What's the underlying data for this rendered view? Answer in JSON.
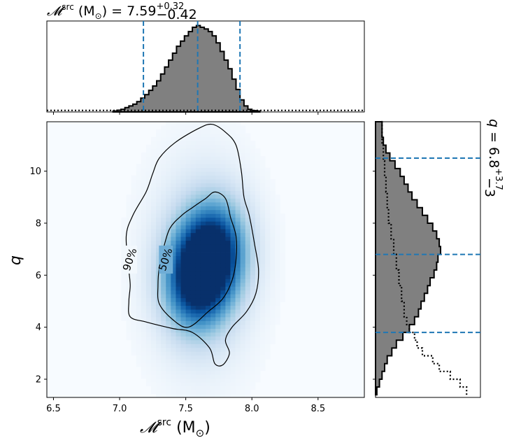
{
  "chart_data": [
    {
      "panel": "top-marginal",
      "type": "histogram",
      "title": {
        "prefix": "𝓜",
        "sup": "src",
        "unit": " (M",
        "sub_unit": "⊙",
        "close": ") = 7.59",
        "plus": "+0.32",
        "minus": "−0.42"
      },
      "x": {
        "lim": [
          6.45,
          8.85
        ]
      },
      "bin_edges": [
        6.95,
        6.98,
        7.01,
        7.04,
        7.07,
        7.1,
        7.13,
        7.16,
        7.19,
        7.22,
        7.25,
        7.28,
        7.31,
        7.34,
        7.37,
        7.4,
        7.43,
        7.46,
        7.49,
        7.52,
        7.55,
        7.58,
        7.61,
        7.64,
        7.67,
        7.7,
        7.73,
        7.76,
        7.79,
        7.82,
        7.85,
        7.88,
        7.91,
        7.94,
        7.97,
        8.0,
        8.03,
        8.06
      ],
      "counts": [
        0.01,
        0.02,
        0.03,
        0.05,
        0.07,
        0.09,
        0.12,
        0.16,
        0.2,
        0.25,
        0.3,
        0.36,
        0.44,
        0.52,
        0.6,
        0.68,
        0.76,
        0.82,
        0.88,
        0.93,
        0.98,
        1.0,
        0.98,
        0.96,
        0.93,
        0.88,
        0.8,
        0.7,
        0.6,
        0.5,
        0.38,
        0.26,
        0.14,
        0.07,
        0.03,
        0.015,
        0.01
      ],
      "prior": {
        "style": "dotted",
        "level": 0.01
      },
      "quantile_lines": [
        7.18,
        7.59,
        7.91
      ],
      "quantile_color": "#1f77b4"
    },
    {
      "panel": "joint",
      "type": "heatmap",
      "xlabel": {
        "prefix": "𝓜",
        "sup": "src",
        "rest": " (M",
        "sub": "⊙",
        "close": ")"
      },
      "ylabel": "q",
      "xlim": [
        6.45,
        8.85
      ],
      "ylim": [
        1.3,
        11.9
      ],
      "xticks": [
        "6.5",
        "7.0",
        "7.5",
        "8.0",
        "8.5"
      ],
      "xtick_values": [
        6.5,
        7.0,
        7.5,
        8.0,
        8.5
      ],
      "yticks": [
        "2",
        "4",
        "6",
        "8",
        "10"
      ],
      "ytick_values": [
        2,
        4,
        6,
        8,
        10
      ],
      "colormap": "Blues",
      "density_modes": [
        {
          "x": 7.58,
          "y": 5.8,
          "weight": 1.0
        },
        {
          "x": 7.72,
          "y": 7.0,
          "weight": 0.9
        }
      ],
      "contours": [
        {
          "label": "90%",
          "label_at": [
            7.08,
            6.6
          ],
          "points": [
            [
              7.05,
              7.5
            ],
            [
              7.1,
              8.3
            ],
            [
              7.2,
              9.2
            ],
            [
              7.25,
              9.9
            ],
            [
              7.3,
              10.5
            ],
            [
              7.42,
              11.1
            ],
            [
              7.6,
              11.65
            ],
            [
              7.7,
              11.8
            ],
            [
              7.8,
              11.5
            ],
            [
              7.88,
              11.0
            ],
            [
              7.92,
              10.0
            ],
            [
              7.94,
              9.0
            ],
            [
              7.98,
              8.3
            ],
            [
              8.02,
              7.2
            ],
            [
              8.05,
              6.2
            ],
            [
              8.03,
              5.3
            ],
            [
              7.96,
              4.6
            ],
            [
              7.85,
              4.0
            ],
            [
              7.8,
              3.5
            ],
            [
              7.83,
              3.0
            ],
            [
              7.78,
              2.55
            ],
            [
              7.72,
              2.6
            ],
            [
              7.68,
              3.2
            ],
            [
              7.55,
              3.8
            ],
            [
              7.4,
              3.95
            ],
            [
              7.2,
              4.2
            ],
            [
              7.08,
              4.4
            ],
            [
              7.07,
              5.0
            ],
            [
              7.08,
              5.6
            ],
            [
              7.07,
              6.2
            ]
          ]
        },
        {
          "label": "50%",
          "label_at": [
            7.35,
            6.6
          ],
          "points": [
            [
              7.33,
              7.0
            ],
            [
              7.38,
              7.8
            ],
            [
              7.47,
              8.3
            ],
            [
              7.55,
              8.6
            ],
            [
              7.65,
              8.95
            ],
            [
              7.72,
              9.2
            ],
            [
              7.8,
              8.95
            ],
            [
              7.84,
              8.2
            ],
            [
              7.88,
              7.5
            ],
            [
              7.88,
              6.6
            ],
            [
              7.85,
              5.8
            ],
            [
              7.78,
              5.1
            ],
            [
              7.67,
              4.6
            ],
            [
              7.52,
              4.0
            ],
            [
              7.4,
              4.3
            ],
            [
              7.3,
              4.9
            ],
            [
              7.29,
              5.6
            ],
            [
              7.3,
              6.3
            ]
          ]
        }
      ]
    },
    {
      "panel": "right-marginal",
      "type": "histogram",
      "orientation": "horizontal",
      "side_label": {
        "var": "q",
        "eq": " = 6.8",
        "plus": "+3.7",
        "minus": "−3"
      },
      "y": {
        "lim": [
          1.3,
          11.9
        ]
      },
      "bin_edges": [
        1.4,
        1.7,
        2.0,
        2.3,
        2.6,
        2.9,
        3.2,
        3.5,
        3.8,
        4.1,
        4.4,
        4.7,
        5.0,
        5.3,
        5.6,
        5.9,
        6.2,
        6.5,
        6.8,
        7.1,
        7.4,
        7.7,
        8.0,
        8.3,
        8.6,
        8.9,
        9.2,
        9.5,
        9.8,
        10.1,
        10.4,
        10.7,
        11.0,
        11.3,
        11.6,
        11.9
      ],
      "counts": [
        0.02,
        0.06,
        0.1,
        0.14,
        0.18,
        0.25,
        0.32,
        0.42,
        0.52,
        0.6,
        0.66,
        0.7,
        0.75,
        0.8,
        0.84,
        0.9,
        0.94,
        0.96,
        1.0,
        0.98,
        0.94,
        0.88,
        0.8,
        0.72,
        0.64,
        0.56,
        0.5,
        0.44,
        0.38,
        0.3,
        0.22,
        0.16,
        0.12,
        0.1,
        0.1
      ],
      "prior": {
        "style": "dotted",
        "points": [
          [
            1.4,
            1.4
          ],
          [
            1.7,
            1.3
          ],
          [
            2.0,
            1.15
          ],
          [
            2.3,
            0.98
          ],
          [
            2.6,
            0.88
          ],
          [
            2.9,
            0.72
          ],
          [
            3.2,
            0.64
          ],
          [
            3.5,
            0.6
          ],
          [
            3.8,
            0.52
          ],
          [
            4.1,
            0.48
          ],
          [
            4.4,
            0.44
          ],
          [
            5.0,
            0.4
          ],
          [
            5.6,
            0.36
          ],
          [
            6.2,
            0.32
          ],
          [
            6.8,
            0.28
          ],
          [
            7.4,
            0.24
          ],
          [
            8.0,
            0.2
          ],
          [
            8.6,
            0.18
          ],
          [
            9.2,
            0.16
          ],
          [
            9.8,
            0.14
          ],
          [
            10.4,
            0.12
          ],
          [
            11.0,
            0.1
          ],
          [
            11.6,
            0.1
          ],
          [
            11.9,
            0.12
          ]
        ]
      },
      "quantile_lines": [
        3.8,
        6.8,
        10.5
      ],
      "quantile_color": "#1f77b4"
    }
  ]
}
